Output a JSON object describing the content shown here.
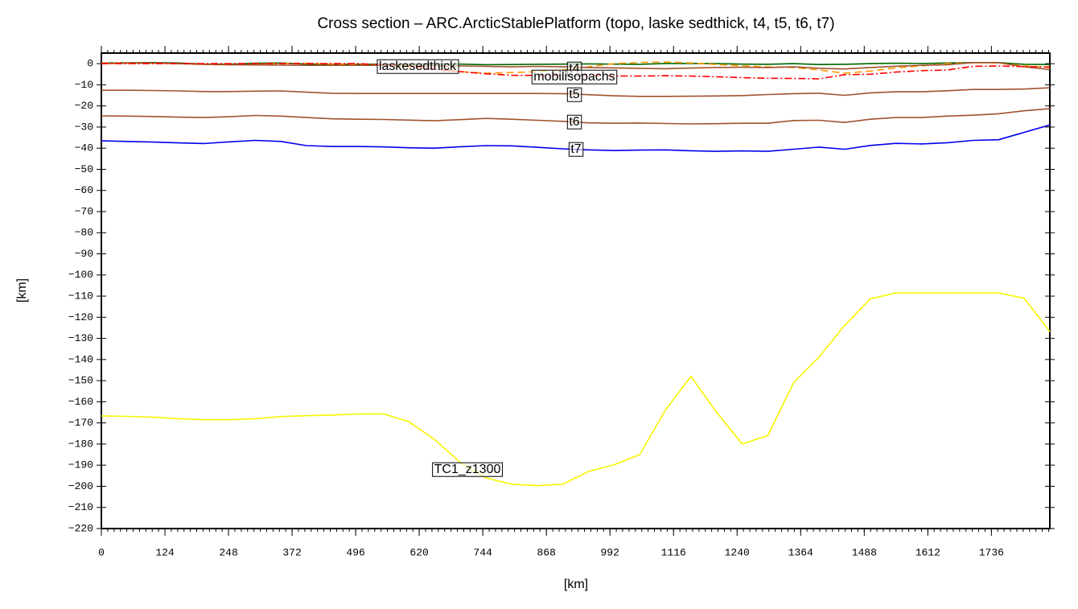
{
  "chart_data": {
    "type": "line",
    "title": "Cross section – ARC.ArcticStablePlatform (topo, laske sedthick, t4, t5, t6, t7)",
    "x_label": "[km]",
    "y_label": "[km]",
    "xlim": [
      0,
      1850
    ],
    "ylim": [
      -220,
      5
    ],
    "xticks": [
      0,
      124,
      248,
      372,
      496,
      620,
      744,
      868,
      992,
      1116,
      1240,
      1364,
      1488,
      1612,
      1736
    ],
    "yticks": [
      0,
      {
        "value": -10,
        "label": "−10"
      },
      {
        "value": -20,
        "label": "−20"
      },
      {
        "value": -30,
        "label": "−30"
      },
      {
        "value": -40,
        "label": "−40"
      },
      {
        "value": -50,
        "label": "−50"
      },
      {
        "value": -60,
        "label": "−60"
      },
      {
        "value": -70,
        "label": "−70"
      },
      {
        "value": -80,
        "label": "−80"
      },
      {
        "value": -90,
        "label": "−90"
      },
      {
        "value": -100,
        "label": "−100"
      },
      {
        "value": -110,
        "label": "−110"
      },
      {
        "value": -120,
        "label": "−120"
      },
      {
        "value": -130,
        "label": "−130"
      },
      {
        "value": -140,
        "label": "−140"
      },
      {
        "value": -150,
        "label": "−150"
      },
      {
        "value": -160,
        "label": "−160"
      },
      {
        "value": -170,
        "label": "−170"
      },
      {
        "value": -180,
        "label": "−180"
      },
      {
        "value": -190,
        "label": "−190"
      },
      {
        "value": -200,
        "label": "−200"
      },
      {
        "value": -210,
        "label": "−210"
      },
      {
        "value": -220,
        "label": "−220"
      }
    ],
    "x": [
      0,
      50,
      100,
      150,
      200,
      250,
      300,
      350,
      400,
      450,
      500,
      550,
      600,
      650,
      700,
      750,
      800,
      850,
      900,
      950,
      1000,
      1050,
      1100,
      1150,
      1200,
      1250,
      1300,
      1350,
      1400,
      1450,
      1500,
      1550,
      1600,
      1650,
      1700,
      1750,
      1800,
      1850
    ],
    "series": [
      {
        "color": "#006400",
        "dash": "solid",
        "values": [
          0.3,
          0.4,
          0.5,
          0.3,
          -0.2,
          -0.3,
          0.2,
          0.3,
          -0.2,
          -0.3,
          -0.3,
          -0.3,
          -0.2,
          -0.1,
          -0.2,
          -0.5,
          -0.4,
          -0.3,
          -0.2,
          -0.1,
          -0.2,
          -0.3,
          0.1,
          0.1,
          0,
          -0.2,
          -0.3,
          0,
          -0.4,
          -0.3,
          0,
          0.2,
          0.1,
          0.3,
          0.5,
          0.5,
          -0.3,
          -0.4
        ]
      },
      {
        "name": "laskesedthick",
        "color": "#ff9900",
        "dash": "dashed",
        "values": [
          0.2,
          0.4,
          0.3,
          0,
          -0.4,
          -0.6,
          -0.4,
          0,
          0.2,
          -0.2,
          -0.4,
          -0.8,
          -1.5,
          -2.5,
          -3.8,
          -4.5,
          -4.2,
          -3.8,
          -3,
          -1.5,
          0,
          0.6,
          0.8,
          0.3,
          -0.4,
          -1,
          -1.5,
          -1.8,
          -3,
          -4.5,
          -3.5,
          -2,
          -1,
          0,
          0.5,
          0.3,
          -1,
          -1.8
        ]
      },
      {
        "name": "t4",
        "color": "#a0522d",
        "dash": "solid",
        "values": [
          0.1,
          0.2,
          0.3,
          0,
          -0.3,
          -0.5,
          -0.6,
          -0.7,
          -0.8,
          -0.8,
          -0.8,
          -0.8,
          -0.9,
          -1,
          -1.1,
          -1.3,
          -1.5,
          -1.3,
          -1.5,
          -1.8,
          -2,
          -2.2,
          -2.4,
          -2.1,
          -1.8,
          -1.7,
          -1.8,
          -1.5,
          -2.2,
          -2.5,
          -1.8,
          -1.2,
          -0.8,
          -0.5,
          0.5,
          0.5,
          -1.5,
          -2.8
        ]
      },
      {
        "name": "mobilisopachs",
        "color": "#ff0000",
        "dash": "dashdot",
        "values": [
          0,
          0,
          0,
          0,
          0,
          0,
          0,
          0,
          0,
          0,
          0,
          -0.5,
          -1.2,
          -2.5,
          -3.8,
          -4.8,
          -5.5,
          -5.6,
          -5.5,
          -5.4,
          -5.8,
          -5.9,
          -5.7,
          -5.9,
          -6.2,
          -6.6,
          -6.9,
          -7,
          -7.2,
          -5.2,
          -5,
          -4,
          -3.3,
          -3,
          -1.3,
          -1.1,
          -1.4,
          -1.6
        ]
      },
      {
        "name": "t5",
        "color": "#a0522d",
        "dash": "solid",
        "values": [
          -12.6,
          -12.6,
          -12.7,
          -12.9,
          -13.2,
          -13.2,
          -13,
          -12.9,
          -13.5,
          -14,
          -14.1,
          -14.1,
          -14.1,
          -14.1,
          -14.1,
          -14.1,
          -14.1,
          -14.1,
          -14.2,
          -14.7,
          -15.2,
          -15.5,
          -15.5,
          -15.4,
          -15.3,
          -15.1,
          -14.6,
          -14.2,
          -14,
          -15,
          -13.8,
          -13.3,
          -13.3,
          -12.8,
          -12.2,
          -12.2,
          -12,
          -11.4
        ]
      },
      {
        "name": "t6",
        "color": "#a0522d",
        "dash": "solid",
        "values": [
          -24.7,
          -24.8,
          -25,
          -25.3,
          -25.5,
          -25.1,
          -24.5,
          -24.8,
          -25.5,
          -26.1,
          -26.3,
          -26.4,
          -26.7,
          -27,
          -26.5,
          -25.9,
          -26.3,
          -26.8,
          -27.3,
          -28,
          -28.2,
          -28.1,
          -28.3,
          -28.5,
          -28.4,
          -28.2,
          -28.2,
          -26.9,
          -26.8,
          -27.8,
          -26.3,
          -25.5,
          -25.5,
          -24.8,
          -24.4,
          -23.7,
          -22.3,
          -21.3
        ]
      },
      {
        "name": "t7",
        "color": "#0000ee",
        "dash": "solid",
        "values": [
          -36.5,
          -36.8,
          -37.1,
          -37.5,
          -37.8,
          -37,
          -36.3,
          -36.8,
          -38.8,
          -39.2,
          -39.2,
          -39.4,
          -39.8,
          -40,
          -39.3,
          -38.8,
          -38.9,
          -39.6,
          -40.3,
          -40.8,
          -41.1,
          -40.9,
          -40.8,
          -41.2,
          -41.5,
          -41.3,
          -41.5,
          -40.5,
          -39.5,
          -40.5,
          -38.7,
          -37.7,
          -38,
          -37.4,
          -36.3,
          -36,
          -32.5,
          -29
        ]
      },
      {
        "name": "TC1_z1300",
        "color": "#f5f500",
        "dash": "solid",
        "values": [
          -166.7,
          -166.9,
          -167.3,
          -168,
          -168.5,
          -168.5,
          -168,
          -167,
          -166.6,
          -166.3,
          -165.8,
          -165.7,
          -169.5,
          -177.8,
          -188.8,
          -196,
          -199,
          -199.7,
          -199,
          -193,
          -189.8,
          -185,
          -164,
          -148,
          -165,
          -180,
          -176,
          -151,
          -138.8,
          -123.8,
          -111.3,
          -108.5,
          -108.5,
          -108.5,
          -108.5,
          -108.5,
          -111,
          -126.8
        ]
      }
    ]
  }
}
